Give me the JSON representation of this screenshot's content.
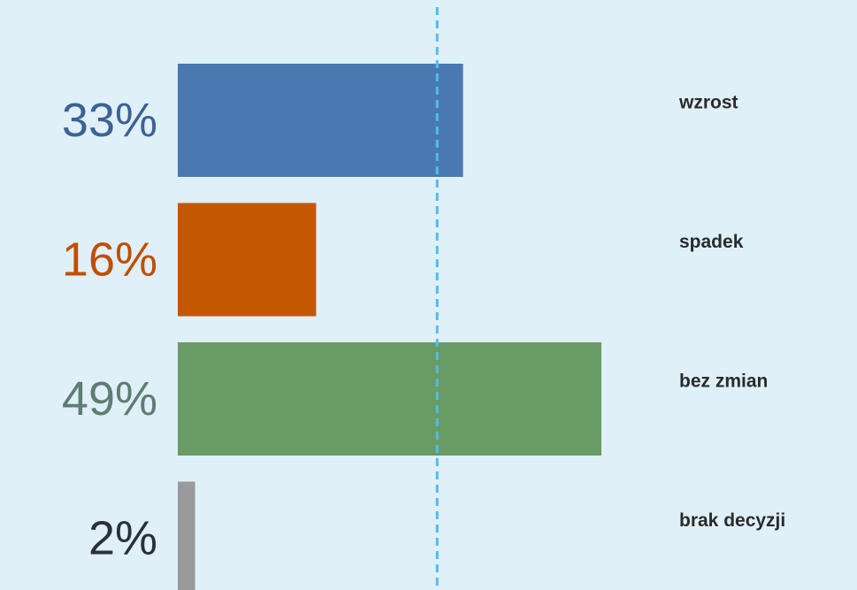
{
  "chart_data": {
    "type": "bar",
    "orientation": "horizontal",
    "categories": [
      "wzrost",
      "spadek",
      "bez zmian",
      "brak decyzji"
    ],
    "values": [
      33,
      16,
      49,
      2
    ],
    "value_labels": [
      "33%",
      "16%",
      "49%",
      "2%"
    ],
    "colors": [
      "#4a78b0",
      "#c45800",
      "#689c64",
      "#9a9a9c"
    ],
    "label_colors": [
      "#3c6294",
      "#c04e00",
      "#5e7d71",
      "#2b2f3c"
    ],
    "xlim": [
      0,
      49
    ],
    "reference_line": {
      "value": 30,
      "style": "dashed",
      "color": "#52bde9"
    },
    "grid": false,
    "legend": "none"
  }
}
